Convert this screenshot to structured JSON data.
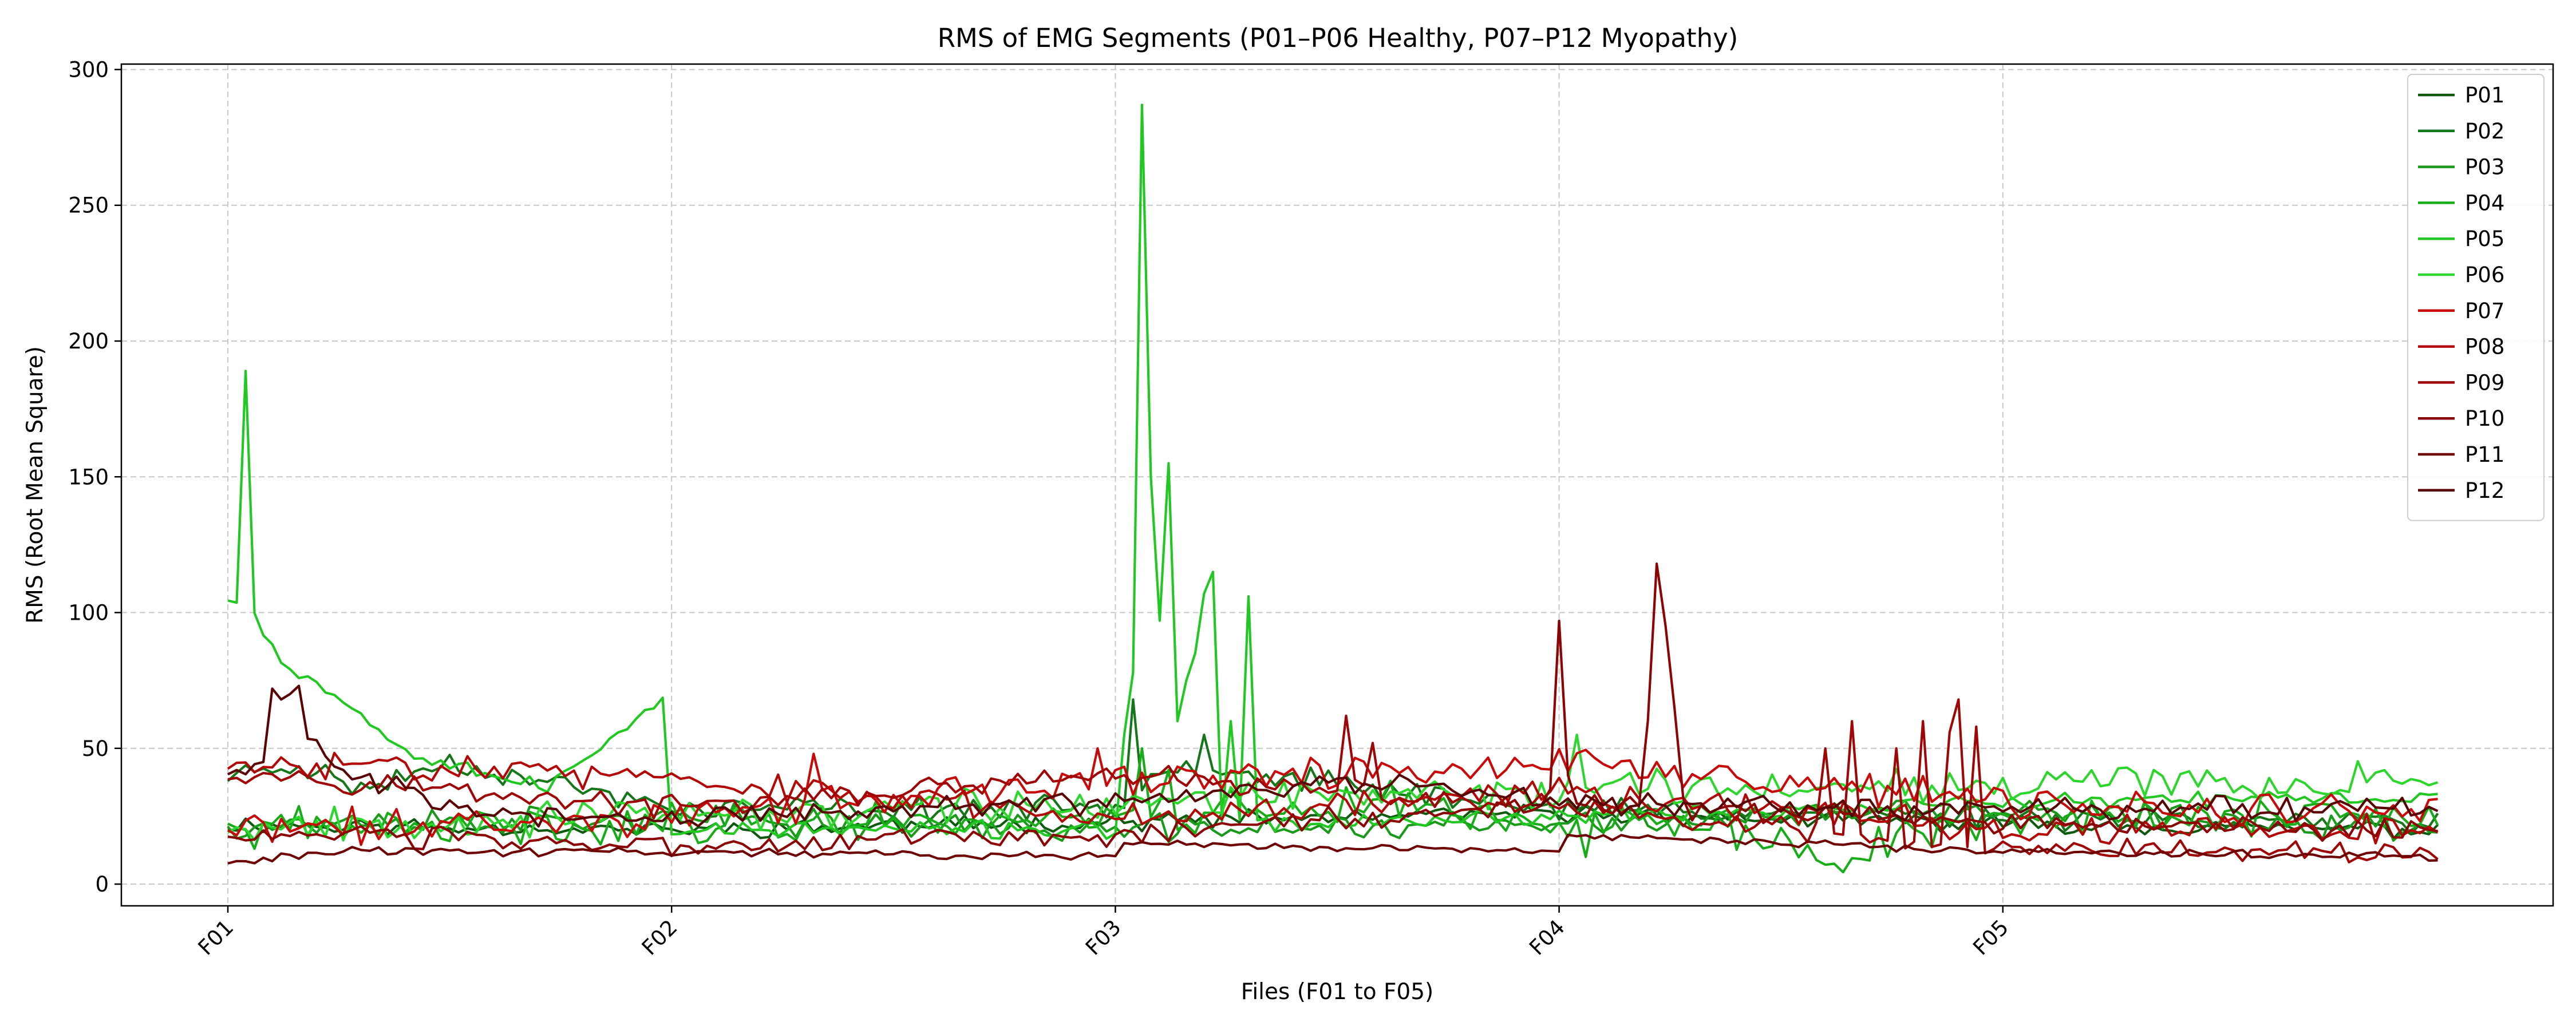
{
  "chart_data": {
    "type": "line",
    "title": "RMS of EMG Segments (P01–P06 Healthy, P07–P12 Myopathy)",
    "xlabel": "Files (F01 to F05)",
    "ylabel": "RMS (Root Mean Square)",
    "x_ticks": [
      "F01",
      "F02",
      "F03",
      "F04",
      "F05"
    ],
    "segments_per_file": 50,
    "xlim": [
      -12,
      262
    ],
    "ylim": [
      -8,
      302
    ],
    "y_ticks": [
      0,
      50,
      100,
      150,
      200,
      250,
      300
    ],
    "grid": true,
    "legend_position": "top-right",
    "series": [
      {
        "name": "P01",
        "color": "#0f5a0f",
        "profile": [
          [
            0,
            22
          ],
          [
            50,
            20
          ],
          [
            100,
            23
          ],
          [
            150,
            26
          ],
          [
            200,
            22
          ],
          [
            250,
            20
          ]
        ],
        "noise": 3,
        "seed": 11,
        "peaks": []
      },
      {
        "name": "P02",
        "color": "#15761a",
        "profile": [
          [
            0,
            40
          ],
          [
            8,
            44
          ],
          [
            15,
            35
          ],
          [
            25,
            45
          ],
          [
            50,
            28
          ],
          [
            100,
            28
          ],
          [
            105,
            45
          ],
          [
            130,
            35
          ],
          [
            150,
            28
          ],
          [
            200,
            25
          ],
          [
            250,
            22
          ]
        ],
        "noise": 4,
        "seed": 23,
        "peaks": [
          [
            102,
            68
          ],
          [
            110,
            55
          ]
        ]
      },
      {
        "name": "P03",
        "color": "#1a9a1a",
        "profile": [
          [
            0,
            22
          ],
          [
            50,
            24
          ],
          [
            100,
            20
          ],
          [
            150,
            22
          ],
          [
            200,
            27
          ],
          [
            250,
            20
          ]
        ],
        "noise": 5,
        "seed": 37,
        "peaks": []
      },
      {
        "name": "P04",
        "color": "#18ad18",
        "profile": [
          [
            0,
            20
          ],
          [
            50,
            22
          ],
          [
            100,
            25
          ],
          [
            130,
            30
          ],
          [
            150,
            23
          ],
          [
            170,
            20
          ],
          [
            180,
            10
          ],
          [
            200,
            25
          ],
          [
            250,
            25
          ]
        ],
        "noise": 7,
        "seed": 41,
        "peaks": [
          [
            103,
            50
          ],
          [
            106,
            42
          ],
          [
            153,
            10
          ]
        ]
      },
      {
        "name": "P05",
        "color": "#22c822",
        "profile": [
          [
            0,
            107
          ],
          [
            3,
            100
          ],
          [
            6,
            82
          ],
          [
            10,
            75
          ],
          [
            15,
            62
          ],
          [
            20,
            50
          ],
          [
            30,
            40
          ],
          [
            36,
            35
          ],
          [
            40,
            45
          ],
          [
            45,
            58
          ],
          [
            49,
            70
          ],
          [
            50,
            20
          ],
          [
            100,
            20
          ],
          [
            150,
            25
          ],
          [
            200,
            30
          ],
          [
            250,
            32
          ]
        ],
        "noise": 3,
        "seed": 53,
        "peaks": [
          [
            2,
            189
          ],
          [
            101,
            55
          ],
          [
            102,
            78
          ],
          [
            103,
            287
          ],
          [
            104,
            150
          ],
          [
            105,
            97
          ],
          [
            106,
            155
          ],
          [
            107,
            60
          ],
          [
            108,
            75
          ],
          [
            109,
            85
          ],
          [
            110,
            107
          ],
          [
            111,
            115
          ],
          [
            113,
            60
          ],
          [
            115,
            106
          ]
        ]
      },
      {
        "name": "P06",
        "color": "#2dd62d",
        "profile": [
          [
            0,
            22
          ],
          [
            50,
            25
          ],
          [
            100,
            30
          ],
          [
            150,
            35
          ],
          [
            200,
            38
          ],
          [
            250,
            38
          ]
        ],
        "noise": 6,
        "seed": 67,
        "peaks": [
          [
            152,
            55
          ]
        ]
      },
      {
        "name": "P07",
        "color": "#c80a0a",
        "profile": [
          [
            0,
            20
          ],
          [
            50,
            25
          ],
          [
            100,
            38
          ],
          [
            150,
            45
          ],
          [
            200,
            30
          ],
          [
            250,
            25
          ]
        ],
        "noise": 6,
        "seed": 71,
        "peaks": [
          [
            66,
            48
          ],
          [
            98,
            50
          ]
        ]
      },
      {
        "name": "P08",
        "color": "#b40808",
        "profile": [
          [
            0,
            42
          ],
          [
            20,
            45
          ],
          [
            50,
            38
          ],
          [
            100,
            25
          ],
          [
            150,
            35
          ],
          [
            200,
            20
          ],
          [
            250,
            20
          ]
        ],
        "noise": 5,
        "seed": 83,
        "peaks": []
      },
      {
        "name": "P09",
        "color": "#a00606",
        "profile": [
          [
            0,
            42
          ],
          [
            50,
            28
          ],
          [
            100,
            40
          ],
          [
            150,
            28
          ],
          [
            200,
            12
          ],
          [
            250,
            12
          ]
        ],
        "noise": 4,
        "seed": 97,
        "peaks": [
          [
            126,
            62
          ],
          [
            129,
            52
          ],
          [
            180,
            50
          ],
          [
            183,
            60
          ],
          [
            188,
            50
          ],
          [
            191,
            60
          ],
          [
            194,
            56
          ],
          [
            195,
            68
          ],
          [
            197,
            58
          ]
        ]
      },
      {
        "name": "P10",
        "color": "#8c0404",
        "profile": [
          [
            0,
            18
          ],
          [
            50,
            14
          ],
          [
            100,
            18
          ],
          [
            150,
            30
          ],
          [
            200,
            22
          ],
          [
            250,
            20
          ]
        ],
        "noise": 4,
        "seed": 103,
        "peaks": [
          [
            149,
            35
          ],
          [
            150,
            97
          ],
          [
            151,
            40
          ],
          [
            160,
            60
          ],
          [
            161,
            118
          ],
          [
            162,
            95
          ],
          [
            163,
            65
          ]
        ]
      },
      {
        "name": "P11",
        "color": "#6e0202",
        "profile": [
          [
            0,
            8
          ],
          [
            10,
            12
          ],
          [
            50,
            12
          ],
          [
            100,
            10
          ],
          [
            101,
            15
          ],
          [
            150,
            12
          ],
          [
            151,
            18
          ],
          [
            200,
            12
          ],
          [
            250,
            10
          ]
        ],
        "noise": 1.5,
        "seed": 113,
        "peaks": []
      },
      {
        "name": "P12",
        "color": "#5a0101",
        "profile": [
          [
            0,
            40
          ],
          [
            4,
            45
          ],
          [
            8,
            55
          ],
          [
            15,
            40
          ],
          [
            30,
            25
          ],
          [
            50,
            25
          ],
          [
            100,
            30
          ],
          [
            125,
            38
          ],
          [
            150,
            30
          ],
          [
            200,
            28
          ],
          [
            250,
            28
          ]
        ],
        "noise": 4,
        "seed": 127,
        "peaks": [
          [
            5,
            72
          ],
          [
            6,
            68
          ],
          [
            7,
            70
          ],
          [
            8,
            73
          ]
        ]
      }
    ]
  }
}
